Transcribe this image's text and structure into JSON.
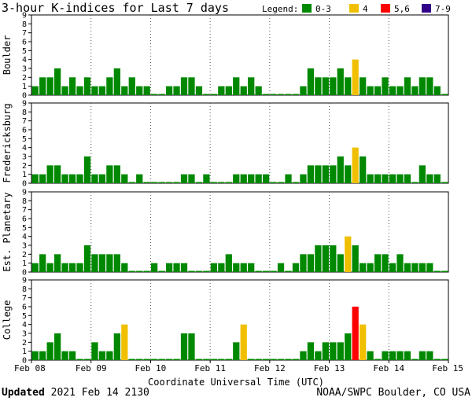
{
  "title": "3-hour K-indices for Last 7 days",
  "legend": {
    "label": "Legend:",
    "items": [
      {
        "label": "0-3",
        "color": "#008800"
      },
      {
        "label": "4",
        "color": "#f0c000"
      },
      {
        "label": "5,6",
        "color": "#ff0000"
      },
      {
        "label": "7-9",
        "color": "#330088"
      }
    ]
  },
  "footer": {
    "updated_label": "Updated",
    "updated_value": "2021 Feb 14 2130",
    "source": "NOAA/SWPC Boulder, CO USA"
  },
  "chart_data": {
    "type": "bar",
    "xlabel": "Coordinate Universal Time (UTC)",
    "x_ticks": [
      "Feb 08",
      "Feb 09",
      "Feb 10",
      "Feb 11",
      "Feb 12",
      "Feb 13",
      "Feb 14",
      "Feb 15"
    ],
    "y_ticks": [
      "0",
      "1",
      "2",
      "3",
      "4",
      "5",
      "6",
      "7",
      "8",
      "9"
    ],
    "ylim": [
      0,
      9
    ],
    "bars_per_day": 8,
    "color_scale": [
      {
        "range": [
          0,
          3
        ],
        "color": "#008800"
      },
      {
        "range": [
          4,
          4
        ],
        "color": "#f0c000"
      },
      {
        "range": [
          5,
          6
        ],
        "color": "#ff0000"
      },
      {
        "range": [
          7,
          9
        ],
        "color": "#330088"
      }
    ],
    "panels": [
      {
        "name": "Boulder",
        "values": [
          1,
          2,
          2,
          3,
          1,
          2,
          1,
          2,
          1,
          1,
          2,
          3,
          1,
          2,
          1,
          1,
          0,
          0,
          1,
          1,
          2,
          2,
          1,
          0,
          0,
          1,
          1,
          2,
          1,
          2,
          1,
          0,
          0,
          0,
          0,
          0,
          1,
          3,
          2,
          2,
          2,
          3,
          2,
          4,
          2,
          1,
          1,
          2,
          1,
          1,
          2,
          1,
          2,
          2,
          1,
          0
        ]
      },
      {
        "name": "Fredericksburg",
        "values": [
          1,
          1,
          2,
          2,
          1,
          1,
          1,
          3,
          1,
          1,
          2,
          2,
          1,
          0,
          1,
          0,
          0,
          0,
          0,
          0,
          1,
          1,
          0,
          1,
          0,
          0,
          0,
          1,
          1,
          1,
          1,
          1,
          0,
          0,
          1,
          0,
          1,
          2,
          2,
          2,
          2,
          3,
          2,
          4,
          3,
          1,
          1,
          1,
          1,
          1,
          1,
          0,
          2,
          1,
          1,
          0
        ]
      },
      {
        "name": "Est. Planetary",
        "values": [
          1,
          2,
          1,
          2,
          1,
          1,
          1,
          3,
          2,
          2,
          2,
          2,
          1,
          0,
          0,
          0,
          1,
          0,
          1,
          1,
          1,
          0,
          0,
          0,
          1,
          1,
          2,
          1,
          1,
          1,
          0,
          0,
          0,
          1,
          0,
          1,
          2,
          2,
          3,
          3,
          3,
          2,
          4,
          3,
          1,
          1,
          2,
          2,
          1,
          2,
          1,
          1,
          1,
          1,
          0,
          0
        ]
      },
      {
        "name": "College",
        "values": [
          1,
          1,
          2,
          3,
          1,
          1,
          0,
          0,
          2,
          1,
          1,
          3,
          4,
          0,
          0,
          0,
          0,
          0,
          0,
          0,
          3,
          3,
          0,
          0,
          0,
          0,
          0,
          2,
          4,
          0,
          0,
          0,
          0,
          0,
          0,
          0,
          1,
          2,
          1,
          2,
          2,
          2,
          3,
          6,
          4,
          1,
          0,
          1,
          1,
          1,
          1,
          0,
          1,
          1,
          0,
          0
        ]
      }
    ]
  }
}
